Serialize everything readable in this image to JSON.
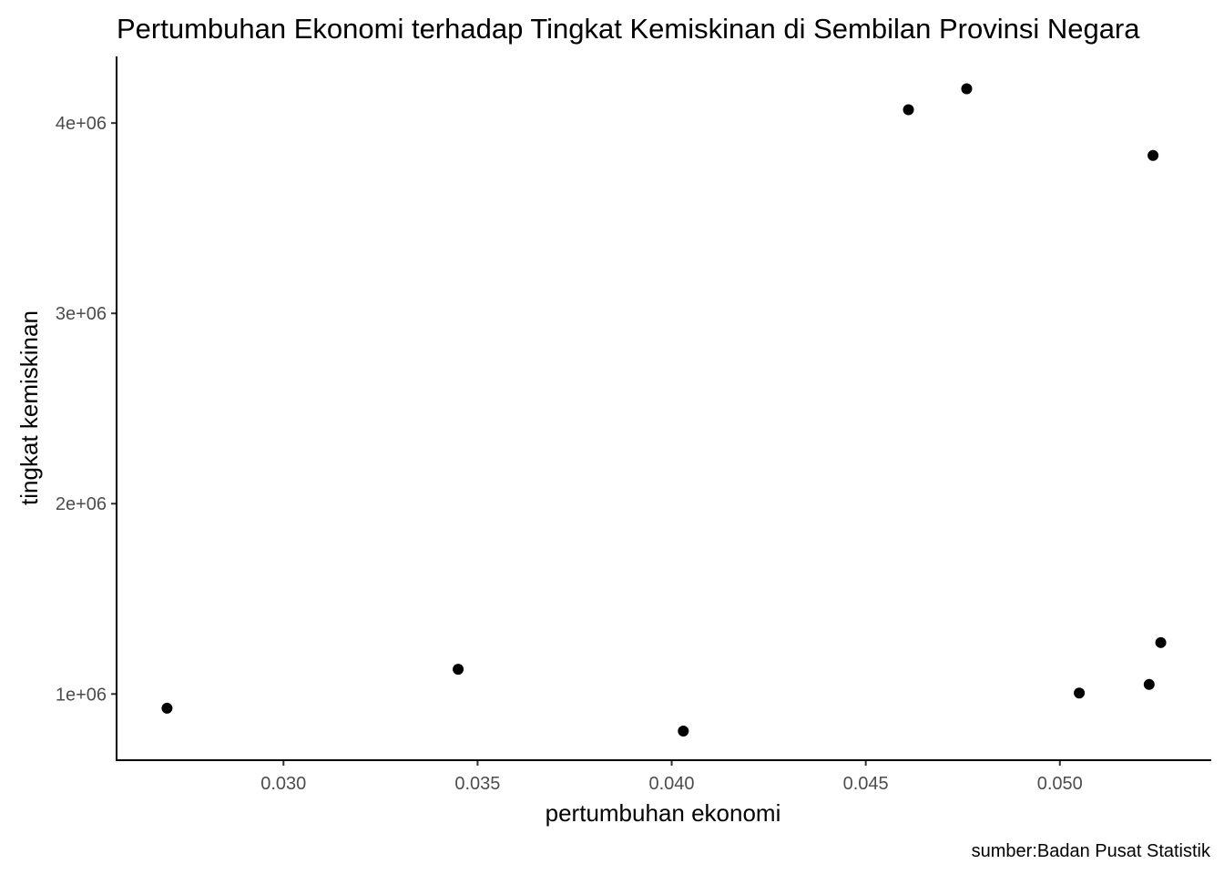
{
  "chart_data": {
    "type": "scatter",
    "title": "Pertumbuhan Ekonomi terhadap Tingkat Kemiskinan di Sembilan Provinsi Negara",
    "xlabel": "pertumbuhan ekonomi",
    "ylabel": "tingkat kemiskinan",
    "caption": "sumber:Badan Pusat Statistik",
    "xlim": [
      0.0257,
      0.0539
    ],
    "ylim": [
      652000,
      4350000
    ],
    "x_ticks": [
      {
        "value": 0.03,
        "label": "0.030"
      },
      {
        "value": 0.035,
        "label": "0.035"
      },
      {
        "value": 0.04,
        "label": "0.040"
      },
      {
        "value": 0.045,
        "label": "0.045"
      },
      {
        "value": 0.05,
        "label": "0.050"
      }
    ],
    "y_ticks": [
      {
        "value": 1000000,
        "label": "1e+06"
      },
      {
        "value": 2000000,
        "label": "2e+06"
      },
      {
        "value": 3000000,
        "label": "3e+06"
      },
      {
        "value": 4000000,
        "label": "4e+06"
      }
    ],
    "grid": false,
    "point_color": "#000000",
    "points": [
      {
        "x": 0.027,
        "y": 925000
      },
      {
        "x": 0.0345,
        "y": 1130000
      },
      {
        "x": 0.0403,
        "y": 805000
      },
      {
        "x": 0.0461,
        "y": 4070000
      },
      {
        "x": 0.0476,
        "y": 4180000
      },
      {
        "x": 0.0505,
        "y": 1005000
      },
      {
        "x": 0.0523,
        "y": 1050000
      },
      {
        "x": 0.0524,
        "y": 3830000
      },
      {
        "x": 0.0526,
        "y": 1270000
      }
    ]
  }
}
